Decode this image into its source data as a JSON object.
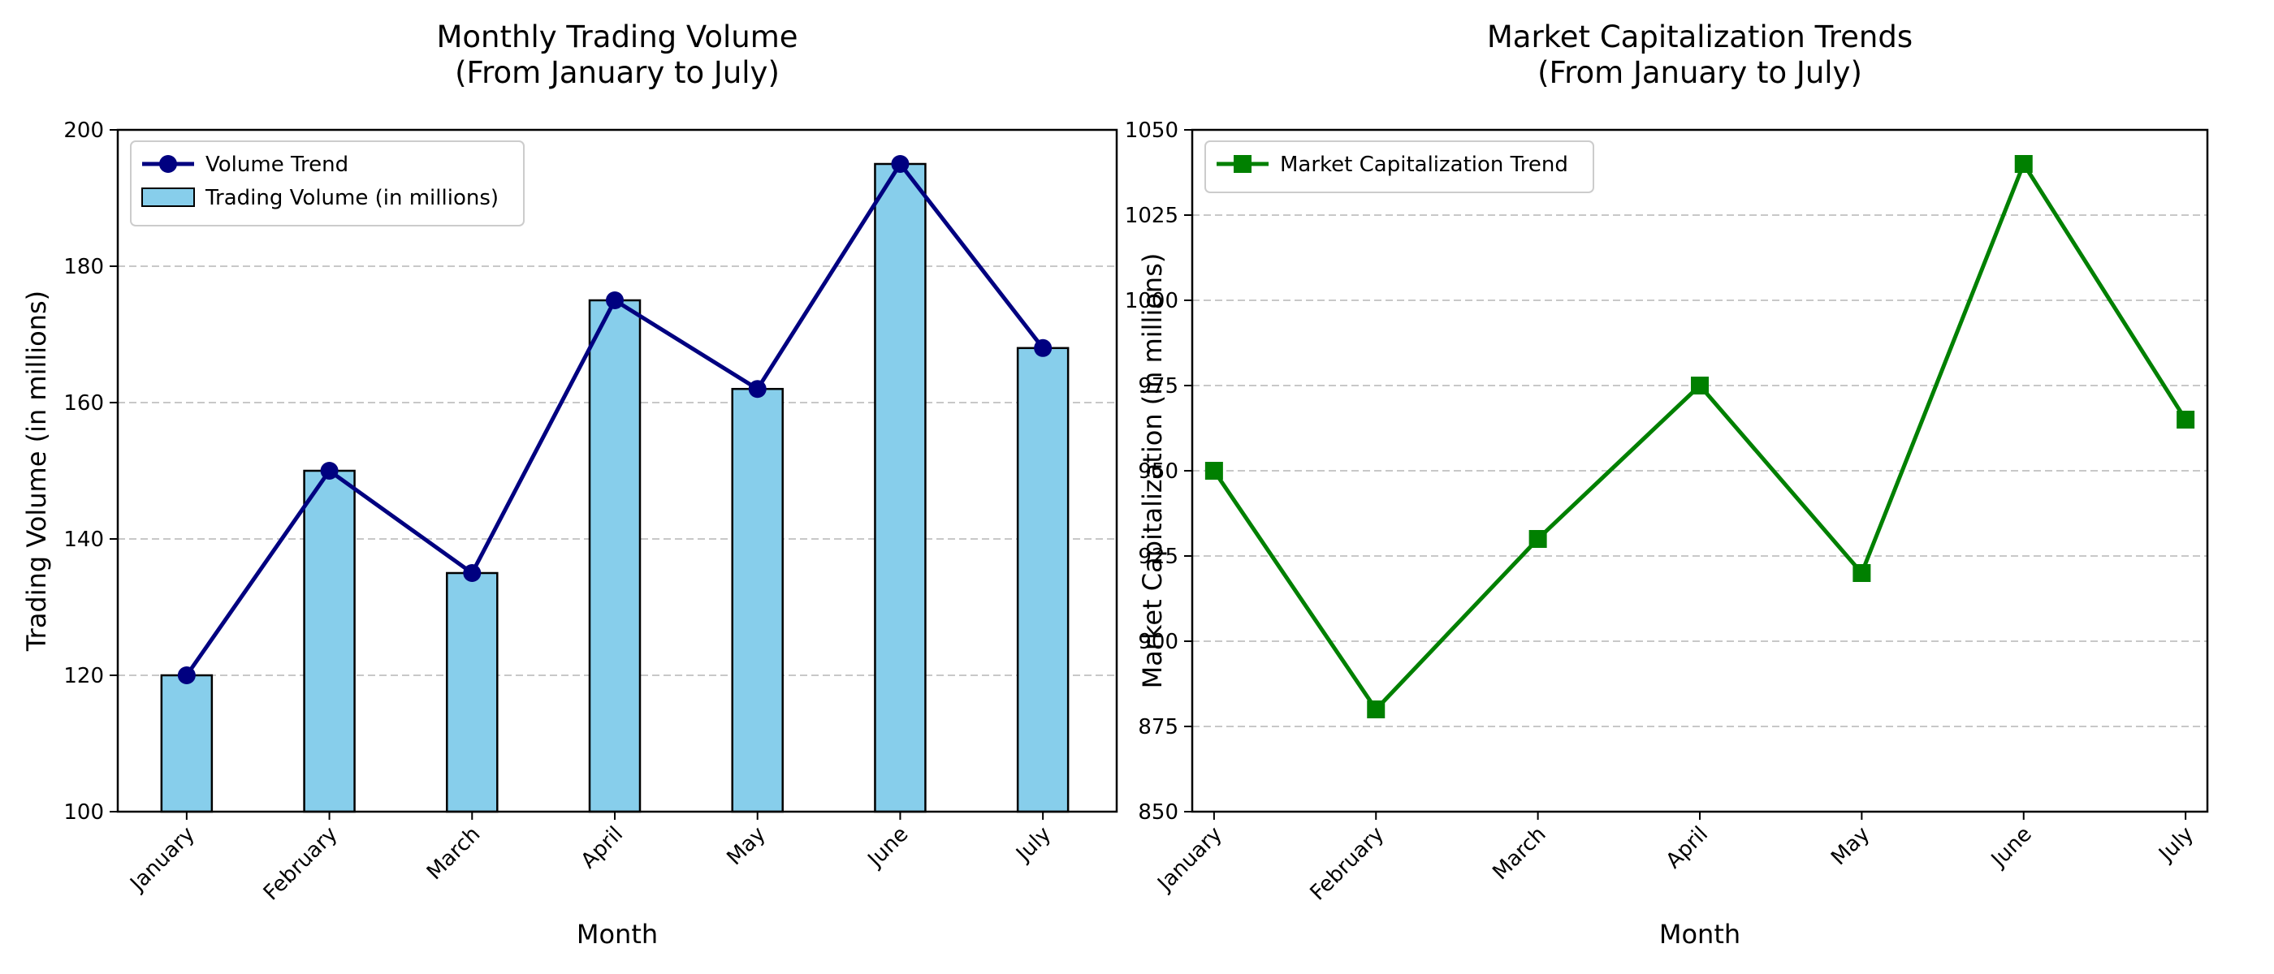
{
  "chart_data": [
    {
      "type": "bar",
      "title_lines": [
        "Monthly Trading Volume",
        "(From January to July)"
      ],
      "xlabel": "Month",
      "ylabel": "Trading Volume (in millions)",
      "categories": [
        "January",
        "February",
        "March",
        "April",
        "May",
        "June",
        "July"
      ],
      "ylim": [
        100,
        200
      ],
      "yticks": [
        100,
        120,
        140,
        160,
        180,
        200
      ],
      "grid": "y-dashed",
      "legend_position": "top-left",
      "series": [
        {
          "name": "Trading Volume (in millions)",
          "kind": "bar",
          "values": [
            120,
            150,
            135,
            175,
            162,
            195,
            168
          ],
          "color": "#87CEEB",
          "edge_color": "#000000"
        },
        {
          "name": "Volume Trend",
          "kind": "line",
          "marker": "circle",
          "values": [
            120,
            150,
            135,
            175,
            162,
            195,
            168
          ],
          "color": "#000080"
        }
      ]
    },
    {
      "type": "line",
      "title_lines": [
        "Market Capitalization Trends",
        "(From January to July)"
      ],
      "xlabel": "Month",
      "ylabel": "Market Capitalization (in millions)",
      "categories": [
        "January",
        "February",
        "March",
        "April",
        "May",
        "June",
        "July"
      ],
      "ylim": [
        850,
        1050
      ],
      "yticks": [
        850,
        875,
        900,
        925,
        950,
        975,
        1000,
        1025,
        1050
      ],
      "grid": "y-dashed",
      "legend_position": "top-left",
      "series": [
        {
          "name": "Market Capitalization Trend",
          "kind": "line",
          "marker": "square",
          "values": [
            950,
            880,
            930,
            975,
            920,
            1040,
            965
          ],
          "color": "#008000"
        }
      ]
    }
  ]
}
